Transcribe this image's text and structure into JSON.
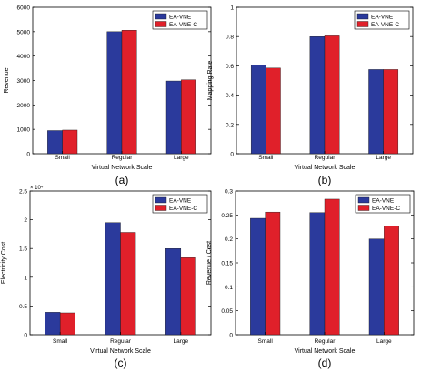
{
  "colors": {
    "ea_vne": "#2b3a9c",
    "ea_vne_c": "#e0202a",
    "axis": "#000000"
  },
  "chart_data": [
    {
      "type": "bar",
      "panel_label": "(a)",
      "categories": [
        "Small",
        "Regular",
        "Large"
      ],
      "series": [
        {
          "name": "EA-VNE",
          "values": [
            950,
            5000,
            2980
          ]
        },
        {
          "name": "EA-VNE-C",
          "values": [
            970,
            5060,
            3030
          ]
        }
      ],
      "xlabel": "Virtual Network Scale",
      "ylabel": "Revenue",
      "ylim": [
        0,
        6000
      ],
      "yticks": [
        "0",
        "1000",
        "2000",
        "3000",
        "4000",
        "5000",
        "6000"
      ],
      "exponent": "",
      "legend": "top-right",
      "grid": false
    },
    {
      "type": "bar",
      "panel_label": "(b)",
      "categories": [
        "Small",
        "Regular",
        "Large"
      ],
      "series": [
        {
          "name": "EA-VNE",
          "values": [
            0.605,
            0.8,
            0.575
          ]
        },
        {
          "name": "EA-VNE-C",
          "values": [
            0.585,
            0.805,
            0.575
          ]
        }
      ],
      "xlabel": "Virtual Network Scale",
      "ylabel": "Mapping Rate",
      "ylim": [
        0,
        1
      ],
      "yticks": [
        "0",
        "0.2",
        "0.4",
        "0.6",
        "0.8",
        "1"
      ],
      "exponent": "",
      "legend": "top-right",
      "grid": false
    },
    {
      "type": "bar",
      "panel_label": "(c)",
      "categories": [
        "Small",
        "Regular",
        "Large"
      ],
      "series": [
        {
          "name": "EA-VNE",
          "values": [
            3900,
            19500,
            15000
          ]
        },
        {
          "name": "EA-VNE-C",
          "values": [
            3800,
            17800,
            13400
          ]
        }
      ],
      "xlabel": "Virtual Network Scale",
      "ylabel": "Electricity Cost",
      "ylim": [
        0,
        25000
      ],
      "yticks": [
        "0",
        "0.5",
        "1",
        "1.5",
        "2",
        "2.5"
      ],
      "exponent": "× 10⁴",
      "legend": "top-right",
      "grid": false
    },
    {
      "type": "bar",
      "panel_label": "(d)",
      "categories": [
        "Small",
        "Regular",
        "Large"
      ],
      "series": [
        {
          "name": "EA-VNE",
          "values": [
            0.243,
            0.255,
            0.2
          ]
        },
        {
          "name": "EA-VNE-C",
          "values": [
            0.256,
            0.283,
            0.227
          ]
        }
      ],
      "xlabel": "Virtual Network Scale",
      "ylabel": "Revenue / Cost",
      "ylim": [
        0,
        0.3
      ],
      "yticks": [
        "0",
        "0.05",
        "0.1",
        "0.15",
        "0.2",
        "0.25",
        "0.3"
      ],
      "exponent": "",
      "legend": "top-right",
      "grid": false
    }
  ]
}
